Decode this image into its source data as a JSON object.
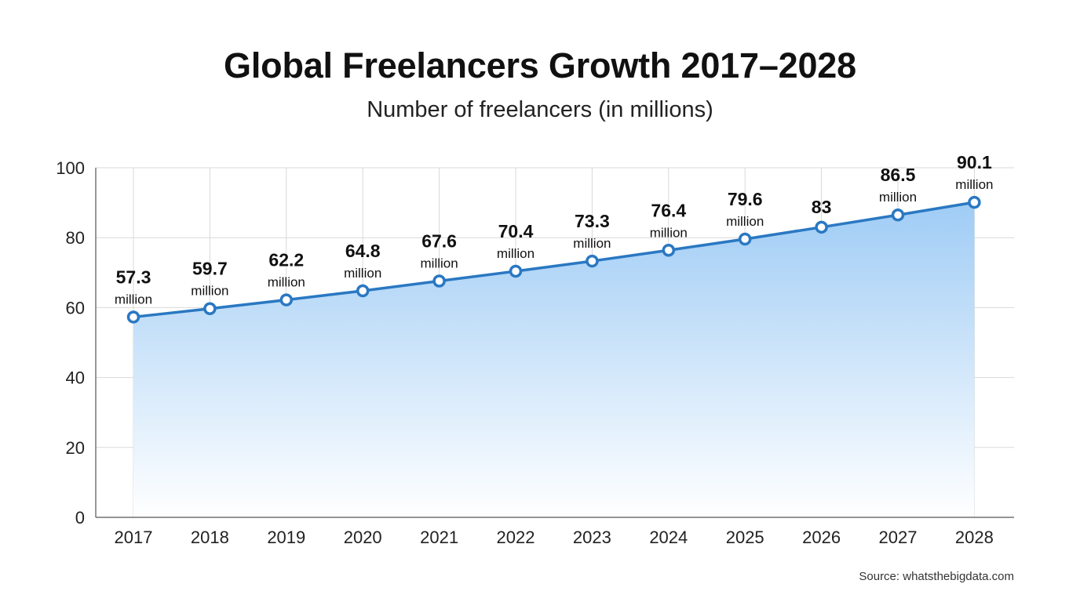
{
  "chart_data": {
    "type": "area",
    "title": "Global Freelancers Growth 2017–2028",
    "subtitle": "Number of freelancers (in millions)",
    "x": [
      "2017",
      "2018",
      "2019",
      "2020",
      "2021",
      "2022",
      "2023",
      "2024",
      "2025",
      "2026",
      "2027",
      "2028"
    ],
    "series": [
      {
        "values": [
          57.3,
          59.7,
          62.2,
          64.8,
          67.6,
          70.4,
          73.3,
          76.4,
          79.6,
          83,
          86.5,
          90.1
        ],
        "data_labels": [
          {
            "value": "57.3",
            "unit": "million"
          },
          {
            "value": "59.7",
            "unit": "million"
          },
          {
            "value": "62.2",
            "unit": "million"
          },
          {
            "value": "64.8",
            "unit": "million"
          },
          {
            "value": "67.6",
            "unit": "million"
          },
          {
            "value": "70.4",
            "unit": "million"
          },
          {
            "value": "73.3",
            "unit": "million"
          },
          {
            "value": "76.4",
            "unit": "million"
          },
          {
            "value": "79.6",
            "unit": "million"
          },
          {
            "value": "83",
            "unit": ""
          },
          {
            "value": "86.5",
            "unit": "million"
          },
          {
            "value": "90.1",
            "unit": "million"
          }
        ]
      }
    ],
    "ylim": [
      0,
      100
    ],
    "yticks": [
      "0",
      "20",
      "40",
      "60",
      "80",
      "100"
    ],
    "grid": true,
    "xlabel": "",
    "ylabel": "",
    "colors": {
      "line": "#2a78c2",
      "marker_fill": "#ffffff",
      "area_top": "#9fccf5",
      "area_bottom": "#ffffff",
      "grid": "#d9d9d9",
      "axis": "#555555"
    }
  },
  "source": "Source: whatsthebigdata.com"
}
